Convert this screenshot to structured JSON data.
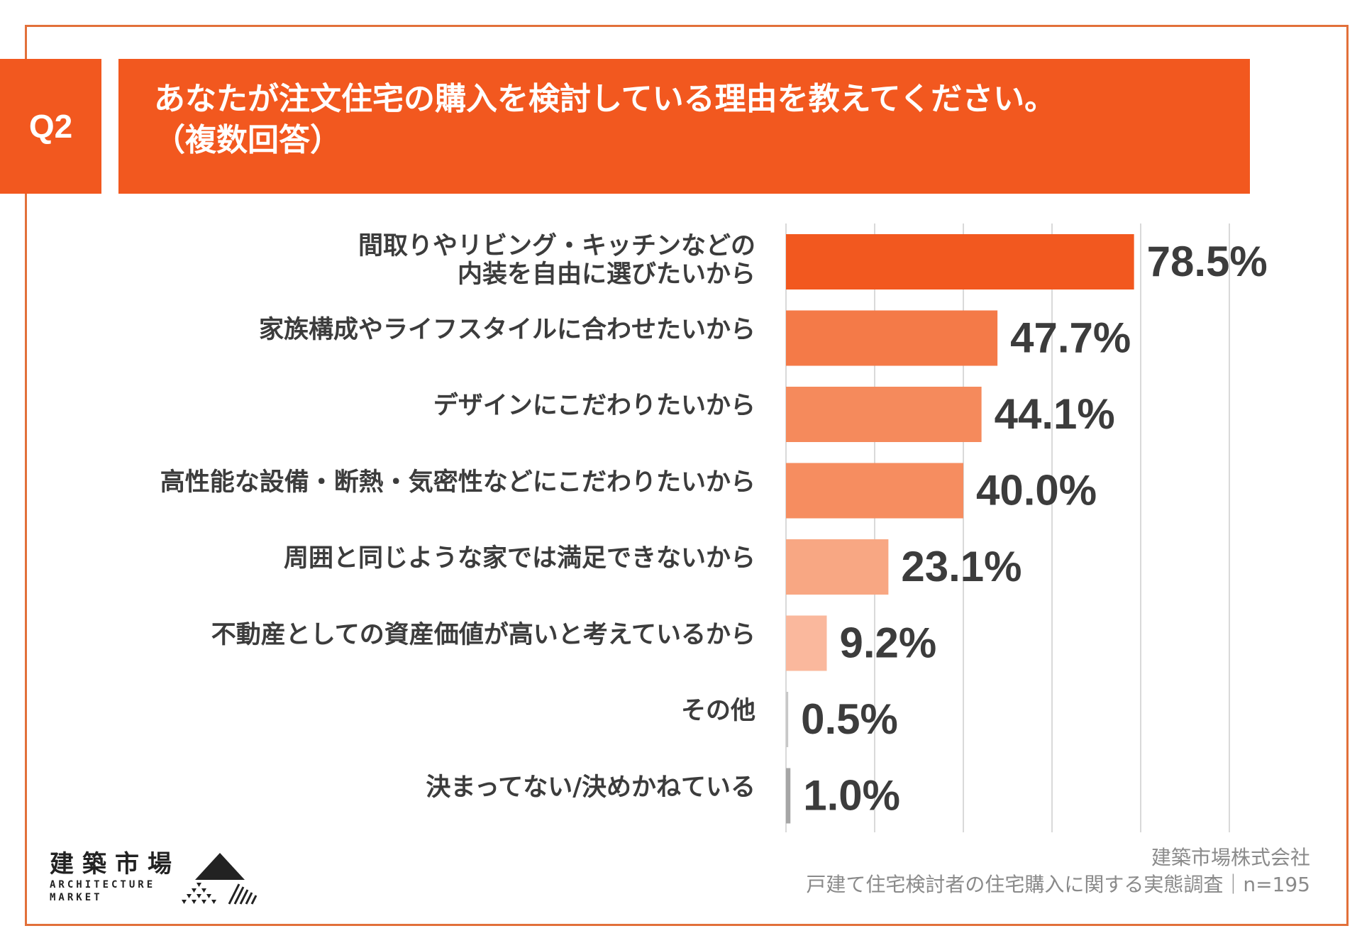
{
  "question": {
    "number": "Q2",
    "title_line1": "あなたが注文住宅の購入を検討している理由を教えてください。",
    "title_line2": "（複数回答）"
  },
  "colors": {
    "frame": "#e2703a",
    "header": "#f2581f",
    "value_text": "#3c3c3c",
    "label_text": "#3c3c3c",
    "gridline": "#d9d9d9"
  },
  "chart_data": {
    "type": "bar",
    "orientation": "horizontal",
    "unit": "%",
    "xlim": [
      0,
      100
    ],
    "grid": true,
    "categories": [
      [
        "間取りやリビング・キッチンなどの",
        "内装を自由に選びたいから"
      ],
      [
        "家族構成やライフスタイルに合わせたいから"
      ],
      [
        "デザインにこだわりたいから"
      ],
      [
        "高性能な設備・断熱・気密性などにこだわりたいから"
      ],
      [
        "周囲と同じような家では満足できないから"
      ],
      [
        "不動産としての資産価値が高いと考えているから"
      ],
      [
        "その他"
      ],
      [
        "決まってない/決めかねている"
      ]
    ],
    "values": [
      78.5,
      47.7,
      44.1,
      40.0,
      23.1,
      9.2,
      0.5,
      1.0
    ],
    "value_labels": [
      "78.5%",
      "47.7%",
      "44.1%",
      "40.0%",
      "23.1%",
      "9.2%",
      "0.5%",
      "1.0%"
    ],
    "bar_colors": [
      "#f2581f",
      "#f47a48",
      "#f58a5c",
      "#f68d60",
      "#f8a783",
      "#fab89d",
      "#c8c8c8",
      "#a6a6a6"
    ]
  },
  "footer": {
    "company": "建築市場株式会社",
    "survey": "戸建て住宅検討者の住宅購入に関する実態調査｜n=195"
  },
  "logo": {
    "kanji": "建築市場",
    "en_line1": "ARCHITECTURE",
    "en_line2": "MARKET"
  }
}
